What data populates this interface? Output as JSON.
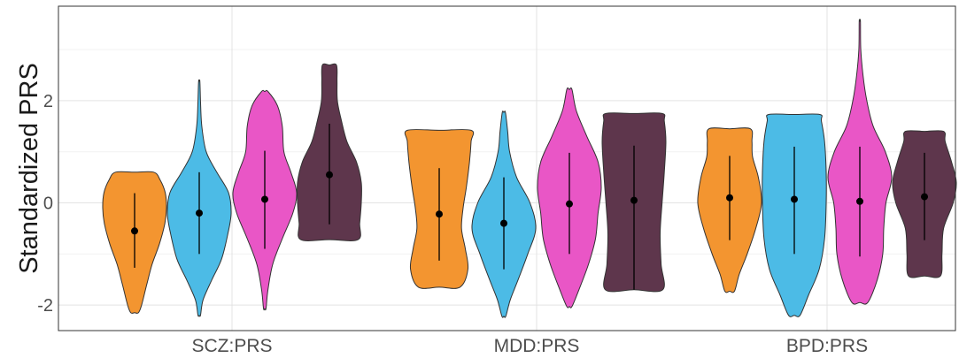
{
  "chart_data": {
    "type": "violin",
    "title": "",
    "xlabel": "",
    "ylabel": "Standardized PRS",
    "ylim": [
      -2.5,
      3.85
    ],
    "yticks": [
      -2,
      0,
      2
    ],
    "grid": true,
    "legend": "none",
    "categories": [
      "SCZ:PRS",
      "MDD:PRS",
      "BPD:PRS"
    ],
    "group_colors": [
      "#f39530",
      "#4cbbe6",
      "#e956c6",
      "#5e364c"
    ],
    "groups": [
      {
        "category": "SCZ:PRS",
        "violins": [
          {
            "min": -2.15,
            "max": 0.6,
            "mean": -0.55,
            "lo": -1.27,
            "hi": 0.19,
            "profile": [
              [
                -2.15,
                0.12
              ],
              [
                -2.0,
                0.22
              ],
              [
                -1.6,
                0.38
              ],
              [
                -1.2,
                0.55
              ],
              [
                -0.8,
                0.78
              ],
              [
                -0.4,
                0.95
              ],
              [
                -0.1,
                1.0
              ],
              [
                0.2,
                0.96
              ],
              [
                0.45,
                0.8
              ],
              [
                0.6,
                0.6
              ]
            ]
          },
          {
            "min": -2.2,
            "max": 2.38,
            "mean": -0.2,
            "lo": -1.0,
            "hi": 0.6,
            "profile": [
              [
                -2.2,
                0.04
              ],
              [
                -1.9,
                0.12
              ],
              [
                -1.5,
                0.4
              ],
              [
                -1.1,
                0.7
              ],
              [
                -0.6,
                0.9
              ],
              [
                -0.2,
                1.0
              ],
              [
                0.2,
                0.92
              ],
              [
                0.6,
                0.55
              ],
              [
                1.0,
                0.22
              ],
              [
                1.5,
                0.08
              ],
              [
                2.0,
                0.04
              ],
              [
                2.38,
                0.02
              ]
            ]
          },
          {
            "min": -2.07,
            "max": 2.18,
            "mean": 0.07,
            "lo": -0.9,
            "hi": 1.02,
            "profile": [
              [
                -2.07,
                0.04
              ],
              [
                -1.7,
                0.1
              ],
              [
                -1.2,
                0.25
              ],
              [
                -0.7,
                0.55
              ],
              [
                -0.2,
                0.88
              ],
              [
                0.2,
                1.0
              ],
              [
                0.6,
                0.82
              ],
              [
                1.0,
                0.6
              ],
              [
                1.5,
                0.55
              ],
              [
                1.9,
                0.4
              ],
              [
                2.18,
                0.1
              ]
            ]
          },
          {
            "min": -0.72,
            "max": 2.7,
            "mean": 0.55,
            "lo": -0.42,
            "hi": 1.55,
            "profile": [
              [
                -0.72,
                0.9
              ],
              [
                -0.4,
                0.95
              ],
              [
                0.0,
                1.0
              ],
              [
                0.4,
                1.0
              ],
              [
                0.8,
                0.85
              ],
              [
                1.2,
                0.55
              ],
              [
                1.6,
                0.38
              ],
              [
                2.0,
                0.25
              ],
              [
                2.4,
                0.24
              ],
              [
                2.7,
                0.22
              ]
            ]
          }
        ]
      },
      {
        "category": "MDD:PRS",
        "violins": [
          {
            "min": -1.65,
            "max": 1.42,
            "mean": -0.22,
            "lo": -1.13,
            "hi": 0.68,
            "profile": [
              [
                -1.65,
                0.65
              ],
              [
                -1.3,
                0.9
              ],
              [
                -0.9,
                0.82
              ],
              [
                -0.5,
                0.7
              ],
              [
                -0.1,
                0.75
              ],
              [
                0.3,
                0.85
              ],
              [
                0.8,
                0.95
              ],
              [
                1.2,
                1.0
              ],
              [
                1.42,
                1.0
              ]
            ]
          },
          {
            "min": -2.22,
            "max": 1.77,
            "mean": -0.4,
            "lo": -1.3,
            "hi": 0.5,
            "profile": [
              [
                -2.22,
                0.06
              ],
              [
                -1.9,
                0.2
              ],
              [
                -1.5,
                0.45
              ],
              [
                -1.0,
                0.75
              ],
              [
                -0.5,
                1.0
              ],
              [
                0.0,
                0.82
              ],
              [
                0.5,
                0.4
              ],
              [
                1.0,
                0.18
              ],
              [
                1.4,
                0.12
              ],
              [
                1.77,
                0.05
              ]
            ]
          },
          {
            "min": -2.03,
            "max": 2.22,
            "mean": -0.02,
            "lo": -1.0,
            "hi": 0.98,
            "profile": [
              [
                -2.03,
                0.08
              ],
              [
                -1.7,
                0.3
              ],
              [
                -1.2,
                0.6
              ],
              [
                -0.7,
                0.82
              ],
              [
                -0.2,
                0.9
              ],
              [
                0.3,
                1.0
              ],
              [
                0.8,
                0.9
              ],
              [
                1.3,
                0.55
              ],
              [
                1.8,
                0.22
              ],
              [
                2.22,
                0.08
              ]
            ]
          },
          {
            "min": -1.7,
            "max": 1.75,
            "mean": 0.05,
            "lo": -1.7,
            "hi": 1.12,
            "profile": [
              [
                -1.7,
                0.9
              ],
              [
                -1.2,
                0.85
              ],
              [
                -0.6,
                0.82
              ],
              [
                0.0,
                0.88
              ],
              [
                0.6,
                0.95
              ],
              [
                1.2,
                1.0
              ],
              [
                1.6,
                0.95
              ],
              [
                1.75,
                0.88
              ]
            ]
          }
        ]
      },
      {
        "category": "BPD:PRS",
        "violins": [
          {
            "min": -1.73,
            "max": 1.45,
            "mean": 0.1,
            "lo": -0.73,
            "hi": 0.92,
            "profile": [
              [
                -1.73,
                0.15
              ],
              [
                -1.4,
                0.3
              ],
              [
                -1.0,
                0.55
              ],
              [
                -0.5,
                0.82
              ],
              [
                0.0,
                1.0
              ],
              [
                0.5,
                0.9
              ],
              [
                0.9,
                0.72
              ],
              [
                1.2,
                0.7
              ],
              [
                1.45,
                0.65
              ]
            ]
          },
          {
            "min": -2.2,
            "max": 1.73,
            "mean": 0.07,
            "lo": -1.0,
            "hi": 1.1,
            "profile": [
              [
                -2.2,
                0.18
              ],
              [
                -1.8,
                0.45
              ],
              [
                -1.3,
                0.78
              ],
              [
                -0.7,
                0.95
              ],
              [
                0.0,
                1.0
              ],
              [
                0.6,
                1.0
              ],
              [
                1.2,
                0.95
              ],
              [
                1.6,
                0.85
              ],
              [
                1.73,
                0.8
              ]
            ]
          },
          {
            "min": -1.95,
            "max": 3.55,
            "mean": 0.03,
            "lo": -1.05,
            "hi": 1.1,
            "profile": [
              [
                -1.95,
                0.25
              ],
              [
                -1.5,
                0.55
              ],
              [
                -1.0,
                0.72
              ],
              [
                -0.5,
                0.75
              ],
              [
                0.0,
                0.82
              ],
              [
                0.5,
                1.0
              ],
              [
                1.0,
                0.8
              ],
              [
                1.5,
                0.42
              ],
              [
                2.0,
                0.22
              ],
              [
                2.5,
                0.1
              ],
              [
                3.0,
                0.03
              ],
              [
                3.55,
                0.02
              ]
            ]
          },
          {
            "min": -1.43,
            "max": 1.4,
            "mean": 0.12,
            "lo": -0.73,
            "hi": 0.98,
            "profile": [
              [
                -1.43,
                0.5
              ],
              [
                -1.0,
                0.55
              ],
              [
                -0.5,
                0.6
              ],
              [
                0.0,
                0.9
              ],
              [
                0.4,
                1.0
              ],
              [
                0.8,
                0.85
              ],
              [
                1.2,
                0.65
              ],
              [
                1.4,
                0.6
              ]
            ]
          }
        ]
      }
    ]
  }
}
